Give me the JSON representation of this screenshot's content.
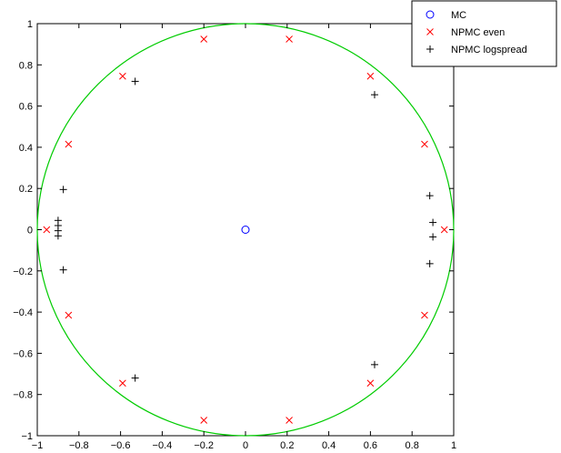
{
  "chart_data": {
    "type": "scatter",
    "xlim": [
      -1,
      1
    ],
    "ylim": [
      -1,
      1
    ],
    "xticks": [
      "−1",
      "−0.8",
      "−0.6",
      "−0.4",
      "−0.2",
      "0",
      "0.2",
      "0.4",
      "0.6",
      "0.8",
      "1"
    ],
    "yticks": [
      "−1",
      "−0.8",
      "−0.6",
      "−0.4",
      "−0.2",
      "0",
      "0.2",
      "0.4",
      "0.6",
      "0.8",
      "1"
    ],
    "grid": false,
    "legend_position": "top-right",
    "unit_circle": {
      "center": [
        0,
        0
      ],
      "radius": 1,
      "color": "#00cc00"
    },
    "series": [
      {
        "name": "MC",
        "marker": "circle",
        "color": "#0000ff",
        "points": [
          [
            0.0,
            0.0
          ]
        ]
      },
      {
        "name": "NPMC even",
        "marker": "x",
        "color": "#ff0000",
        "points": [
          [
            -0.2,
            0.925
          ],
          [
            0.21,
            0.925
          ],
          [
            -0.59,
            0.745
          ],
          [
            0.6,
            0.745
          ],
          [
            -0.85,
            0.415
          ],
          [
            0.86,
            0.415
          ],
          [
            -0.955,
            0.0
          ],
          [
            0.955,
            0.0
          ],
          [
            -0.85,
            -0.415
          ],
          [
            0.86,
            -0.415
          ],
          [
            -0.59,
            -0.745
          ],
          [
            0.6,
            -0.745
          ],
          [
            -0.2,
            -0.925
          ],
          [
            0.21,
            -0.925
          ]
        ]
      },
      {
        "name": "NPMC logspread",
        "marker": "plus",
        "color": "#000000",
        "points": [
          [
            -0.53,
            0.72
          ],
          [
            0.62,
            0.655
          ],
          [
            -0.875,
            0.195
          ],
          [
            0.885,
            0.165
          ],
          [
            -0.9,
            0.045
          ],
          [
            -0.9,
            0.02
          ],
          [
            -0.9,
            -0.005
          ],
          [
            -0.9,
            -0.03
          ],
          [
            0.9,
            0.035
          ],
          [
            0.9,
            -0.035
          ],
          [
            -0.875,
            -0.195
          ],
          [
            0.885,
            -0.165
          ],
          [
            -0.53,
            -0.72
          ],
          [
            0.62,
            -0.655
          ]
        ]
      }
    ]
  }
}
